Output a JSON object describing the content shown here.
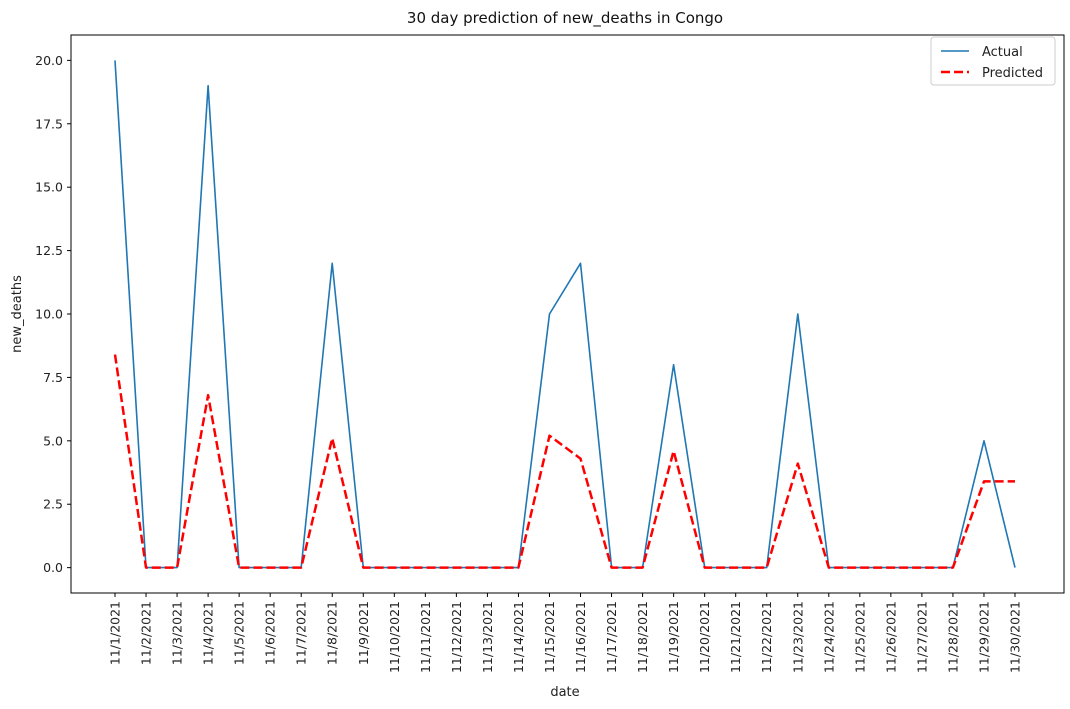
{
  "chart_data": {
    "type": "line",
    "title": "30 day prediction of new_deaths in Congo",
    "xlabel": "date",
    "ylabel": "new_deaths",
    "ylim": [
      -1.0,
      21.0
    ],
    "yticks": [
      0.0,
      2.5,
      5.0,
      7.5,
      10.0,
      12.5,
      15.0,
      17.5,
      20.0
    ],
    "ytick_labels": [
      "0.0",
      "2.5",
      "5.0",
      "7.5",
      "10.0",
      "12.5",
      "15.0",
      "17.5",
      "20.0"
    ],
    "grid": false,
    "legend_position": "top-right",
    "categories": [
      "11/1/2021",
      "11/2/2021",
      "11/3/2021",
      "11/4/2021",
      "11/5/2021",
      "11/6/2021",
      "11/7/2021",
      "11/8/2021",
      "11/9/2021",
      "11/10/2021",
      "11/11/2021",
      "11/12/2021",
      "11/13/2021",
      "11/14/2021",
      "11/15/2021",
      "11/16/2021",
      "11/17/2021",
      "11/18/2021",
      "11/19/2021",
      "11/20/2021",
      "11/21/2021",
      "11/22/2021",
      "11/23/2021",
      "11/24/2021",
      "11/25/2021",
      "11/26/2021",
      "11/27/2021",
      "11/28/2021",
      "11/29/2021",
      "11/30/2021"
    ],
    "series": [
      {
        "name": "Actual",
        "color": "#1f77b4",
        "style": "solid",
        "values": [
          20,
          0,
          0,
          19,
          0,
          0,
          0,
          12,
          0,
          0,
          0,
          0,
          0,
          0,
          10,
          12,
          0,
          0,
          8,
          0,
          0,
          0,
          10,
          0,
          0,
          0,
          0,
          0,
          5,
          0
        ]
      },
      {
        "name": "Predicted",
        "color": "#ff0000",
        "style": "dashed",
        "values": [
          8.4,
          0,
          0,
          6.8,
          0,
          0,
          0,
          5.1,
          0,
          0,
          0,
          0,
          0,
          0,
          5.2,
          4.3,
          0,
          0,
          4.6,
          0,
          0,
          0,
          4.1,
          0,
          0,
          0,
          0,
          0,
          3.4,
          3.4
        ]
      }
    ]
  }
}
